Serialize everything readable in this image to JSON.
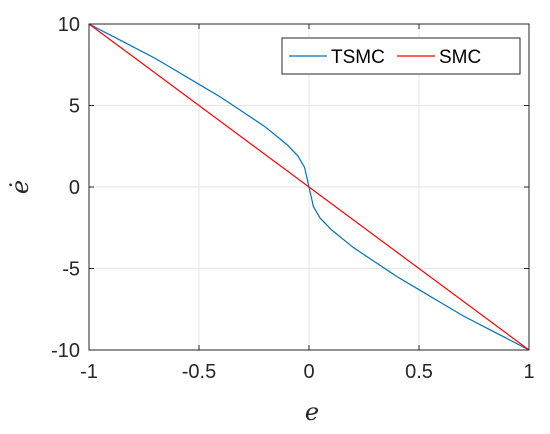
{
  "chart_data": {
    "type": "line",
    "xlabel": "e",
    "ylabel": "ė",
    "xlim": [
      -1,
      1
    ],
    "ylim": [
      -10,
      10
    ],
    "xticks": [
      -1,
      -0.5,
      0,
      0.5,
      1
    ],
    "yticks": [
      -10,
      -5,
      0,
      5,
      10
    ],
    "xtick_labels": [
      "-1",
      "-0.5",
      "0",
      "0.5",
      "1"
    ],
    "ytick_labels": [
      "-10",
      "-5",
      "0",
      "5",
      "10"
    ],
    "grid": true,
    "legend_position": "top-right",
    "legend_orientation": "horizontal",
    "series": [
      {
        "name": "TSMC",
        "color": "#0072BD",
        "x": [
          -1,
          -0.9,
          -0.8,
          -0.7,
          -0.6,
          -0.5,
          -0.4,
          -0.3,
          -0.2,
          -0.1,
          -0.05,
          -0.02,
          0,
          0.02,
          0.05,
          0.1,
          0.2,
          0.3,
          0.4,
          0.5,
          0.6,
          0.7,
          0.8,
          0.9,
          1
        ],
        "y": [
          10,
          9.3,
          8.6,
          7.9,
          7.1,
          6.3,
          5.5,
          4.6,
          3.7,
          2.6,
          1.9,
          1.2,
          0,
          -1.2,
          -1.9,
          -2.6,
          -3.7,
          -4.6,
          -5.5,
          -6.3,
          -7.1,
          -7.9,
          -8.6,
          -9.3,
          -10
        ]
      },
      {
        "name": "SMC",
        "color": "#FF0000",
        "x": [
          -1,
          1
        ],
        "y": [
          10,
          -10
        ]
      }
    ]
  }
}
